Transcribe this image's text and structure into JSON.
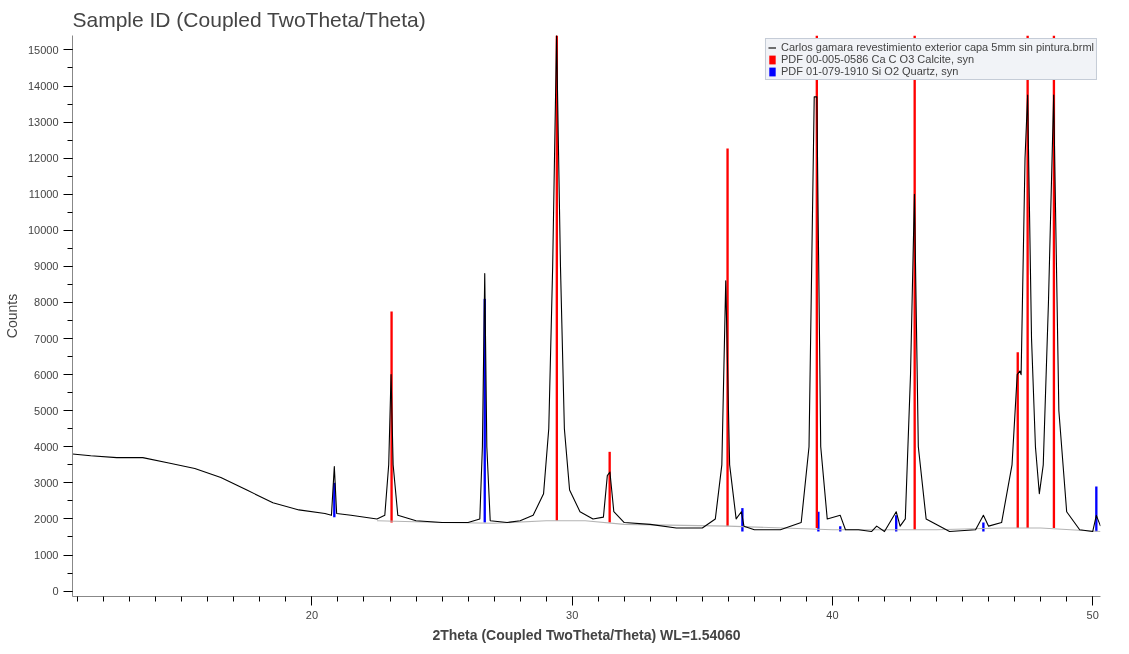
{
  "chart_data": {
    "type": "line",
    "title": "Sample ID (Coupled TwoTheta/Theta)",
    "xlabel": "2Theta (Coupled TwoTheta/Theta) WL=1.54060",
    "ylabel": "Counts",
    "xlim": [
      10.8,
      50.3
    ],
    "ylim": [
      -150,
      15400
    ],
    "xticks": [
      20,
      30,
      40,
      50
    ],
    "yticks": [
      0,
      1000,
      2000,
      3000,
      4000,
      5000,
      6000,
      7000,
      8000,
      9000,
      10000,
      11000,
      12000,
      13000,
      14000,
      15000
    ],
    "legend": "top right",
    "line_style": "solid",
    "series": [
      {
        "name": "Carlos gamara revestimiento exterior capa 5mm sin pintura.brml",
        "color": "#000000",
        "x": [
          10.8,
          11.5,
          12.5,
          13.5,
          14.5,
          15.5,
          16.5,
          17.5,
          18.5,
          19.5,
          20.5,
          20.75,
          20.86,
          20.95,
          21.5,
          22.5,
          22.8,
          22.95,
          23.04,
          23.12,
          23.3,
          24,
          25,
          26,
          26.45,
          26.55,
          26.64,
          26.72,
          26.85,
          27.5,
          28,
          28.5,
          28.9,
          29.1,
          29.25,
          29.4,
          29.55,
          29.7,
          29.9,
          30.3,
          30.8,
          31.2,
          31.35,
          31.45,
          31.6,
          32,
          33,
          34,
          35,
          35.5,
          35.75,
          35.9,
          36.05,
          36.3,
          36.5,
          36.6,
          37,
          38,
          38.8,
          39.1,
          39.3,
          39.4,
          39.55,
          39.8,
          40.3,
          40.5,
          41,
          41.5,
          41.7,
          42,
          42.45,
          42.6,
          42.8,
          43.0,
          43.15,
          43.3,
          43.6,
          44.5,
          45.5,
          45.8,
          46.0,
          46.5,
          46.9,
          47.1,
          47.2,
          47.25,
          47.4,
          47.5,
          47.65,
          47.8,
          47.95,
          48.1,
          48.3,
          48.5,
          48.7,
          49.0,
          49.5,
          50.0,
          50.14,
          50.3
        ],
        "values": [
          3800,
          3750,
          3700,
          3700,
          3550,
          3400,
          3150,
          2800,
          2450,
          2250,
          2150,
          2100,
          3450,
          2150,
          2100,
          2000,
          2100,
          3500,
          6000,
          3500,
          2100,
          1950,
          1900,
          1900,
          2000,
          4000,
          8800,
          4000,
          1950,
          1900,
          1950,
          2100,
          2700,
          4500,
          9000,
          15400,
          9000,
          4500,
          2800,
          2200,
          2000,
          2050,
          3200,
          3300,
          2200,
          1900,
          1850,
          1750,
          1750,
          2000,
          3500,
          8600,
          3500,
          2000,
          2200,
          1800,
          1700,
          1700,
          1900,
          4000,
          13700,
          13700,
          4000,
          2000,
          2100,
          1700,
          1700,
          1650,
          1800,
          1650,
          2200,
          1800,
          2000,
          6000,
          11000,
          4000,
          2000,
          1650,
          1700,
          2100,
          1800,
          1900,
          3500,
          6000,
          6100,
          6000,
          12000,
          13750,
          7000,
          4000,
          2700,
          3500,
          8000,
          13750,
          5000,
          2200,
          1700,
          1650,
          2100,
          1800
        ]
      },
      {
        "color": "#b4b4b4",
        "x": [
          22.5,
          25,
          27,
          29,
          30.5,
          32,
          36,
          40,
          44,
          46.5,
          48,
          50.3
        ],
        "values": [
          1950,
          1900,
          1880,
          1950,
          1950,
          1850,
          1800,
          1700,
          1700,
          1750,
          1750,
          1650
        ]
      },
      {
        "name": "PDF 00-005-0586 Ca C O3 Calcite, syn",
        "color": "#ff0000",
        "type": "bar",
        "x": [
          23.06,
          29.41,
          31.44,
          35.97,
          39.4,
          43.16,
          47.12,
          47.5,
          48.51
        ],
        "base": [
          1900,
          1950,
          1900,
          1800,
          1750,
          1700,
          1750,
          1750,
          1750
        ],
        "values": [
          5850,
          13450,
          1960,
          10470,
          13650,
          13700,
          4870,
          13650,
          13650
        ]
      },
      {
        "name": "PDF 01-079-1910 Si O2 Quartz, syn",
        "color": "#0000ff",
        "type": "bar",
        "x": [
          20.86,
          26.64,
          36.54,
          39.46,
          40.3,
          42.45,
          45.8,
          50.14
        ],
        "base": [
          2050,
          1900,
          1650,
          1650,
          1650,
          1650,
          1650,
          1650
        ],
        "values": [
          950,
          6200,
          650,
          550,
          150,
          450,
          250,
          1250
        ]
      }
    ]
  }
}
